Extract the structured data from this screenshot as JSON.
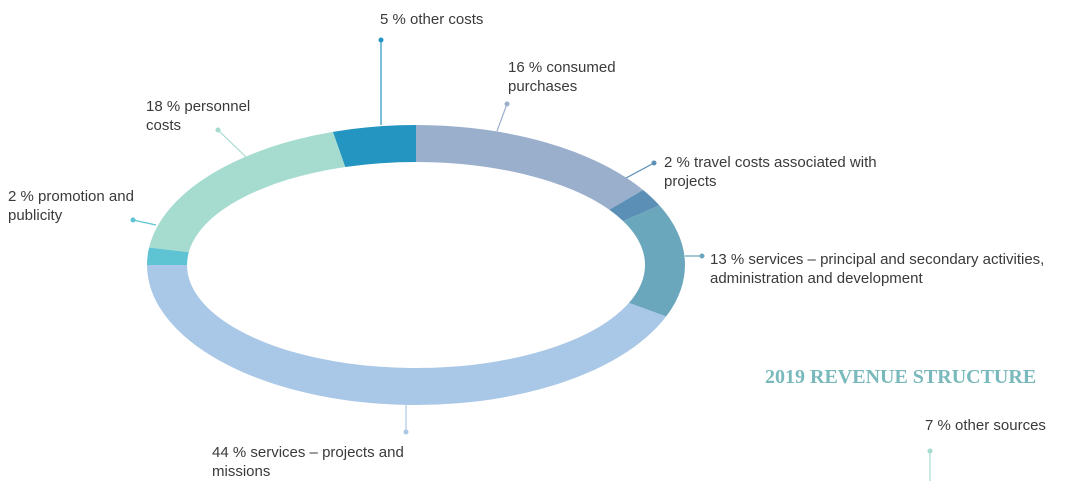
{
  "chart_data": [
    {
      "type": "pie",
      "categories": [
        "other costs",
        "consumed purchases",
        "travel costs associated with projects",
        "services – principal and secondary activities, administration and development",
        "services – projects and missions",
        "promotion and publicity",
        "personnel costs"
      ],
      "values": [
        5,
        16,
        2,
        13,
        44,
        2,
        18
      ],
      "value_labels": [
        "5 %",
        "16 %",
        "2 %",
        "13 %",
        "44 %",
        "2 %",
        "18 %"
      ],
      "colors": [
        "#2494c0",
        "#9aafcc",
        "#5b8fb5",
        "#6aa7bc",
        "#a9c7e6",
        "#5ec4d3",
        "#a6dbd0"
      ]
    },
    {
      "type": "pie",
      "title": "2019 REVENUE STRUCTURE",
      "categories": [
        "other sources"
      ],
      "values": [
        7
      ],
      "value_labels": [
        "7 %"
      ],
      "colors": [
        "#a6dbd0"
      ]
    }
  ]
}
